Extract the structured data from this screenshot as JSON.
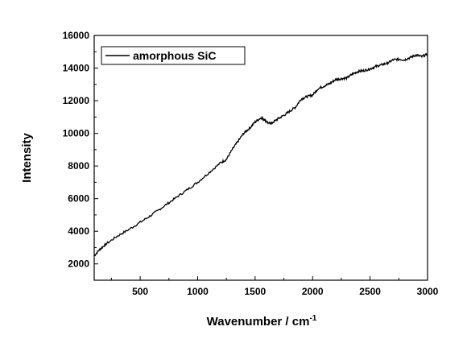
{
  "chart_data": {
    "type": "line",
    "title": "",
    "xlabel": "Wavenumber / cm",
    "xlabel_superscript": "-1",
    "ylabel": "Intensity",
    "xlim": [
      100,
      3000
    ],
    "ylim": [
      1000,
      16000
    ],
    "x_ticks": [
      500,
      1000,
      1500,
      2000,
      2500,
      3000
    ],
    "x_tick_labels": [
      "500",
      "1000",
      "1500",
      "2000",
      "2500",
      "3000"
    ],
    "y_ticks": [
      2000,
      4000,
      6000,
      8000,
      10000,
      12000,
      14000,
      16000
    ],
    "y_tick_labels": [
      "2000",
      "4000",
      "6000",
      "8000",
      "10000",
      "12000",
      "14000",
      "16000"
    ],
    "grid": false,
    "legend_position": "top-left",
    "line_color": "#000000",
    "series": [
      {
        "name": "amorphous SiC",
        "x": [
          100,
          150,
          200,
          300,
          400,
          500,
          600,
          700,
          800,
          900,
          1000,
          1100,
          1200,
          1250,
          1300,
          1350,
          1400,
          1450,
          1500,
          1550,
          1580,
          1620,
          1650,
          1700,
          1750,
          1800,
          1850,
          1900,
          1950,
          2000,
          2050,
          2100,
          2150,
          2200,
          2250,
          2300,
          2350,
          2400,
          2450,
          2500,
          2550,
          2600,
          2650,
          2700,
          2750,
          2800,
          2850,
          2900,
          2950,
          3000
        ],
        "y": [
          2500,
          2900,
          3200,
          3700,
          4100,
          4550,
          5000,
          5500,
          6000,
          6500,
          7000,
          7600,
          8200,
          8400,
          9000,
          9500,
          10000,
          10300,
          10700,
          10950,
          10850,
          10600,
          10650,
          10900,
          11100,
          11350,
          11600,
          12100,
          12250,
          12350,
          12750,
          12900,
          13050,
          13300,
          13350,
          13400,
          13650,
          13800,
          13850,
          13950,
          14100,
          14200,
          14300,
          14500,
          14550,
          14500,
          14650,
          14800,
          14700,
          14850
        ]
      }
    ]
  }
}
